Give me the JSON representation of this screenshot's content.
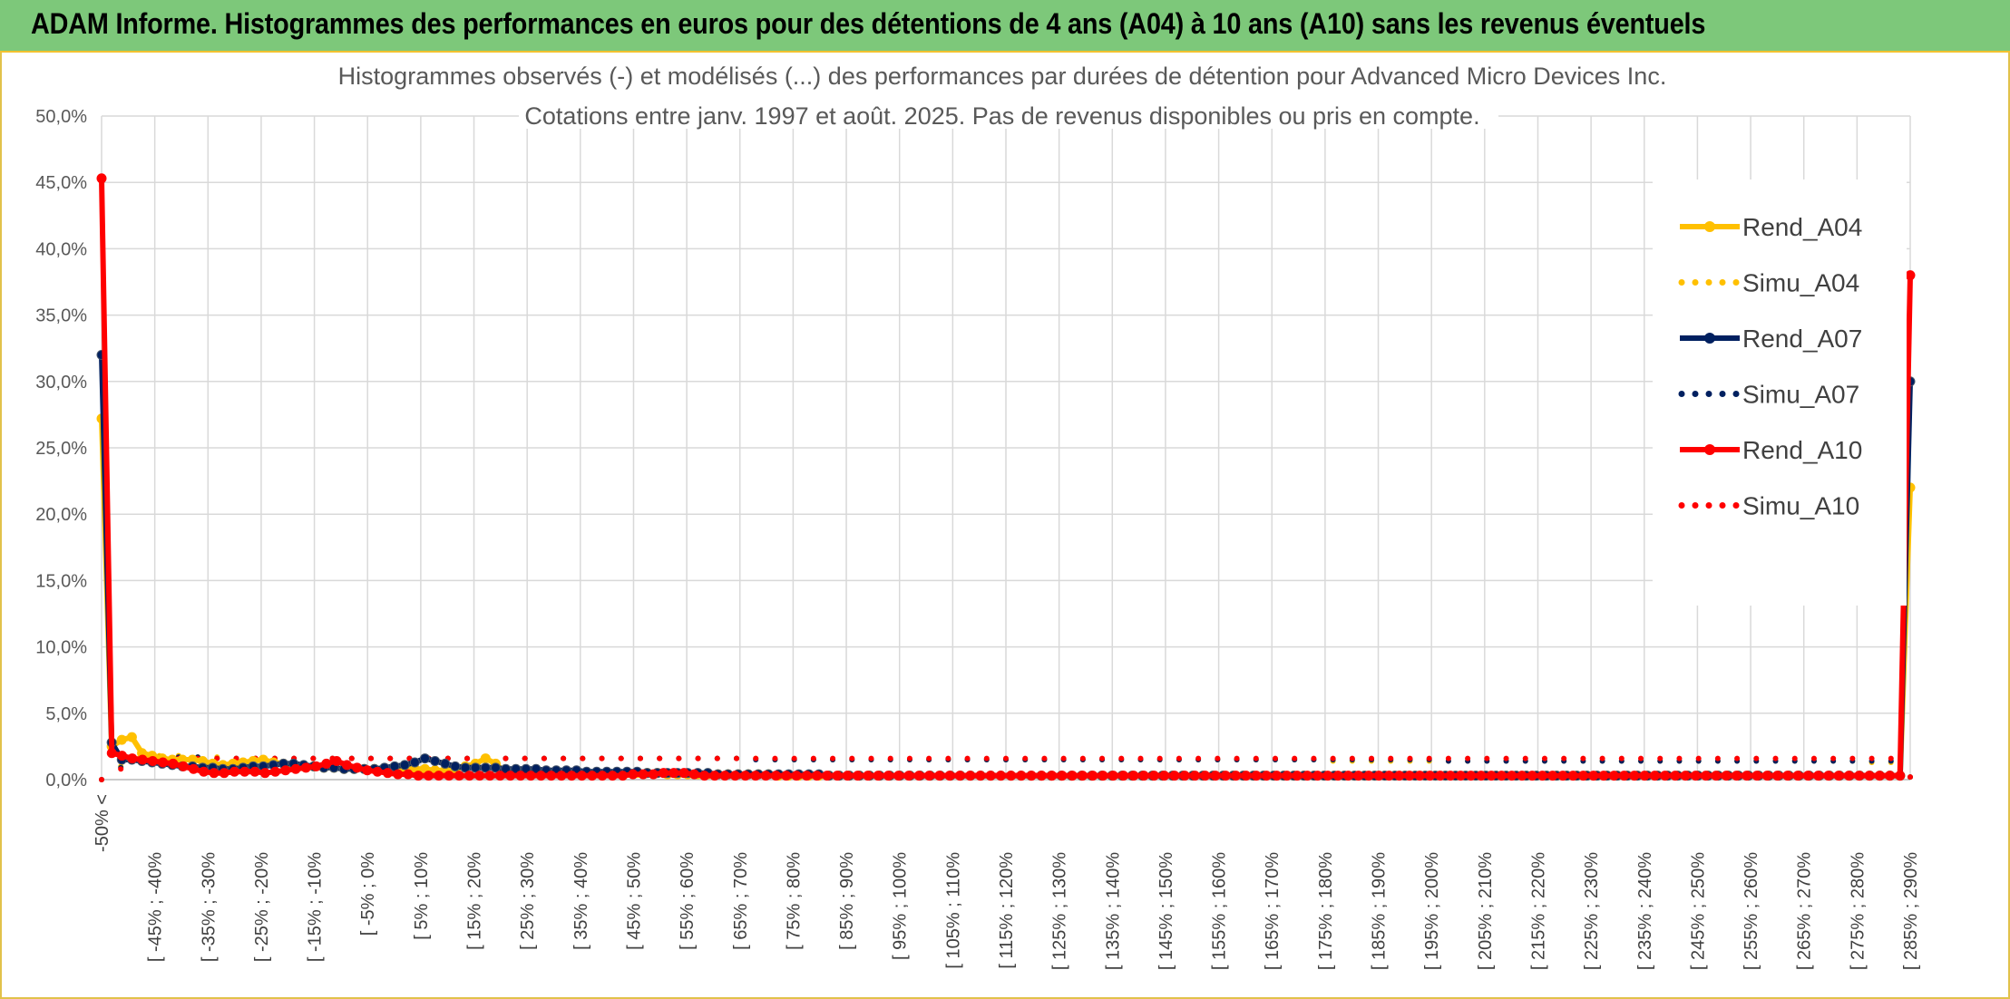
{
  "header": {
    "title": "ADAM Informe. Histogrammes des performances en euros pour des détentions de 4 ans (A04) à 10 ans (A10) sans les revenus éventuels"
  },
  "colors": {
    "a04": "#ffc000",
    "a07": "#002060",
    "a10": "#ff0000",
    "grid": "#d9d9d9",
    "banner": "#7dc87a"
  },
  "chart_data": {
    "type": "line",
    "title": "Histogrammes observés (-) et modélisés (...) des performances par durées de détention pour Advanced Micro Devices Inc.",
    "subtitle": "Cotations entre janv. 1997 et août. 2025. Pas de revenus disponibles ou pris en compte.",
    "ylim": [
      0,
      50
    ],
    "y_ticks": [
      "0,0%",
      "5,0%",
      "10,0%",
      "15,0%",
      "20,0%",
      "25,0%",
      "30,0%",
      "35,0%",
      "40,0%",
      "45,0%",
      "50,0%"
    ],
    "x_tick_labels": [
      "-50% <",
      "[ -45% ; -40%",
      "[ -35% ; -30%",
      "[ -25% ; -20%",
      "[ -15% ; -10%",
      "[ -5% ; 0%",
      "[ 5% ; 10%",
      "[ 15% ; 20%",
      "[ 25% ; 30%",
      "[ 35% ; 40%",
      "[ 45% ; 50%",
      "[ 55% ; 60%",
      "[ 65% ; 70%",
      "[ 75% ; 80%",
      "[ 85% ; 90%",
      "[ 95% ; 100%",
      "[ 105% ; 110%",
      "[ 115% ; 120%",
      "[ 125% ; 130%",
      "[ 135% ; 140%",
      "[ 145% ; 150%",
      "[ 155% ; 160%",
      "[ 165% ; 170%",
      "[ 175% ; 180%",
      "[ 185% ; 190%",
      "[ 195% ; 200%",
      "[ 205% ; 210%",
      "[ 215% ; 220%",
      "[ 225% ; 230%",
      "[ 235% ; 240%",
      "[ 245% ; 250%",
      "[ 255% ; 260%",
      "[ 265% ; 270%",
      "[ 275% ; 280%",
      "[ 285% ; 290%"
    ],
    "legend_position": "right",
    "grid": true,
    "series": [
      {
        "name": "Rend_A04",
        "style": "solid",
        "color": "#ffc000",
        "values": [
          27.2,
          2.5,
          3.0,
          3.2,
          2.0,
          1.8,
          1.6,
          1.5,
          1.5,
          1.5,
          1.4,
          1.2,
          1.1,
          1.2,
          1.3,
          1.4,
          1.5,
          1.3,
          1.2,
          1.1,
          1.0,
          1.0,
          0.9,
          0.9,
          0.8,
          0.8,
          0.8,
          0.8,
          0.7,
          0.8,
          0.8,
          0.8,
          0.8,
          0.7,
          0.7,
          0.8,
          1.0,
          1.2,
          1.6,
          1.2,
          0.5,
          0.5,
          0.5,
          0.5,
          0.5,
          0.5,
          0.5,
          0.5,
          0.5,
          0.5,
          0.5,
          0.5,
          0.5,
          0.5,
          0.5,
          0.5,
          0.4,
          0.4,
          0.4,
          0.4,
          0.4,
          0.4,
          0.4,
          0.4,
          0.4,
          0.4,
          0.4,
          0.3,
          0.3,
          0.3,
          0.3,
          0.3,
          0.3,
          0.3,
          0.3,
          0.3,
          0.3,
          0.3,
          0.3,
          0.3,
          0.3,
          0.3,
          0.3,
          0.3,
          0.3,
          0.3,
          0.3,
          0.3,
          0.3,
          0.3,
          0.3,
          0.3,
          0.3,
          0.3,
          0.3,
          0.3,
          0.3,
          0.3,
          0.3,
          0.3,
          0.3,
          0.3,
          0.3,
          0.3,
          0.3,
          0.3,
          0.3,
          0.3,
          0.3,
          0.3,
          0.3,
          0.3,
          0.3,
          0.3,
          0.3,
          0.3,
          0.3,
          0.3,
          0.3,
          0.3,
          0.3,
          0.3,
          0.3,
          0.3,
          0.3,
          0.3,
          0.3,
          0.3,
          0.3,
          0.3,
          0.3,
          0.3,
          0.3,
          0.3,
          0.3,
          0.3,
          0.3,
          0.3,
          0.3,
          0.3,
          0.3,
          0.3,
          0.3,
          0.3,
          0.3,
          0.3,
          0.3,
          0.3,
          0.3,
          0.3,
          0.3,
          0.3,
          0.3,
          0.3,
          0.3,
          0.3,
          0.3,
          0.3,
          0.3,
          0.3,
          0.3,
          0.3,
          0.3,
          0.3,
          0.3,
          0.3,
          0.3,
          0.3,
          0.3,
          0.3,
          0.3,
          0.3,
          0.3,
          0.3,
          0.3,
          0.3,
          0.3,
          0.3,
          0.3,
          22.0
        ]
      },
      {
        "name": "Simu_A04",
        "style": "dotted",
        "color": "#ffc000",
        "values": [
          0.0,
          1.0,
          1.7,
          1.8,
          1.8,
          1.7,
          1.7,
          1.6,
          1.6,
          1.6,
          1.6,
          1.6,
          1.6,
          1.6,
          1.6,
          1.6,
          1.6,
          1.6,
          1.6,
          1.6,
          1.6,
          1.6,
          1.6,
          1.6,
          1.6,
          1.6,
          1.6,
          1.6,
          1.6,
          1.6,
          1.6,
          1.6,
          1.6,
          1.6,
          1.6,
          1.5,
          1.5,
          1.5,
          1.5,
          1.5,
          1.5,
          1.5,
          1.5,
          1.5,
          1.5,
          1.5,
          1.5,
          1.5,
          1.5,
          1.5,
          1.5,
          1.5,
          1.5,
          1.5,
          1.5,
          1.5,
          1.5,
          1.5,
          1.5,
          1.5,
          1.5,
          1.5,
          1.5,
          1.5,
          1.4,
          1.4,
          1.4,
          1.4,
          1.4,
          1.4,
          1.4,
          1.4,
          1.4,
          1.4,
          1.4,
          1.4,
          1.4,
          1.4,
          1.4,
          1.4,
          1.4,
          1.4,
          1.4,
          1.4,
          1.4,
          1.4,
          1.4,
          1.4,
          1.4,
          1.4,
          1.4,
          1.4,
          1.3,
          1.3,
          0.2
        ]
      },
      {
        "name": "Rend_A07",
        "style": "solid",
        "color": "#002060",
        "values": [
          32.0,
          2.8,
          1.5,
          1.5,
          1.4,
          1.3,
          1.2,
          1.1,
          1.0,
          1.0,
          0.9,
          0.9,
          0.8,
          0.8,
          0.9,
          1.0,
          1.0,
          1.1,
          1.2,
          1.2,
          1.1,
          1.0,
          0.9,
          0.9,
          0.8,
          0.8,
          0.8,
          0.8,
          0.9,
          1.0,
          1.1,
          1.3,
          1.6,
          1.4,
          1.2,
          1.0,
          0.9,
          0.9,
          0.9,
          0.9,
          0.8,
          0.8,
          0.8,
          0.8,
          0.7,
          0.7,
          0.7,
          0.7,
          0.6,
          0.6,
          0.6,
          0.6,
          0.6,
          0.6,
          0.5,
          0.5,
          0.5,
          0.5,
          0.5,
          0.5,
          0.5,
          0.4,
          0.4,
          0.4,
          0.4,
          0.4,
          0.4,
          0.4,
          0.4,
          0.4,
          0.4,
          0.4,
          0.3,
          0.3,
          0.3,
          0.3,
          0.3,
          0.3,
          0.3,
          0.3,
          0.3,
          0.3,
          0.3,
          0.3,
          0.3,
          0.3,
          0.3,
          0.3,
          0.3,
          0.3,
          0.3,
          0.3,
          0.3,
          0.3,
          0.3,
          0.3,
          0.3,
          0.3,
          0.3,
          0.3,
          0.3,
          0.3,
          0.3,
          0.3,
          0.3,
          0.3,
          0.3,
          0.3,
          0.3,
          0.3,
          0.3,
          0.3,
          0.3,
          0.3,
          0.3,
          0.3,
          0.3,
          0.3,
          0.3,
          0.3,
          0.3,
          0.3,
          0.3,
          0.3,
          0.3,
          0.3,
          0.3,
          0.3,
          0.3,
          0.3,
          0.3,
          0.3,
          0.3,
          0.3,
          0.3,
          0.3,
          0.3,
          0.3,
          0.3,
          0.3,
          0.3,
          0.3,
          0.3,
          0.3,
          0.3,
          0.3,
          0.3,
          0.3,
          0.3,
          0.3,
          0.3,
          0.3,
          0.3,
          0.3,
          0.3,
          0.3,
          0.3,
          0.3,
          0.3,
          0.3,
          0.3,
          0.3,
          0.3,
          0.3,
          0.3,
          0.3,
          0.3,
          0.3,
          0.3,
          0.3,
          0.3,
          0.3,
          0.3,
          0.3,
          0.3,
          0.3,
          0.3,
          0.3,
          0.3,
          30.0
        ]
      },
      {
        "name": "Simu_A07",
        "style": "dotted",
        "color": "#002060",
        "values": [
          0.0,
          0.9,
          1.6,
          1.7,
          1.7,
          1.7,
          1.6,
          1.6,
          1.6,
          1.6,
          1.6,
          1.6,
          1.6,
          1.6,
          1.6,
          1.6,
          1.6,
          1.6,
          1.6,
          1.6,
          1.6,
          1.6,
          1.6,
          1.6,
          1.6,
          1.6,
          1.6,
          1.6,
          1.6,
          1.6,
          1.6,
          1.6,
          1.6,
          1.6,
          1.5,
          1.5,
          1.5,
          1.5,
          1.5,
          1.5,
          1.5,
          1.5,
          1.5,
          1.5,
          1.5,
          1.5,
          1.5,
          1.5,
          1.5,
          1.5,
          1.5,
          1.5,
          1.5,
          1.5,
          1.5,
          1.5,
          1.5,
          1.5,
          1.5,
          1.5,
          1.5,
          1.5,
          1.5,
          1.5,
          1.5,
          1.5,
          1.5,
          1.5,
          1.5,
          1.5,
          1.4,
          1.4,
          1.4,
          1.4,
          1.4,
          1.4,
          1.4,
          1.4,
          1.4,
          1.4,
          1.4,
          1.4,
          1.4,
          1.4,
          1.4,
          1.4,
          1.4,
          1.4,
          1.4,
          1.4,
          1.4,
          1.4,
          1.4,
          1.4,
          0.2
        ]
      },
      {
        "name": "Rend_A10",
        "style": "solid",
        "color": "#ff0000",
        "values": [
          45.3,
          2.0,
          1.8,
          1.6,
          1.5,
          1.4,
          1.3,
          1.2,
          1.0,
          0.8,
          0.6,
          0.5,
          0.5,
          0.6,
          0.6,
          0.6,
          0.5,
          0.6,
          0.7,
          0.8,
          0.9,
          1.0,
          1.2,
          1.4,
          1.1,
          0.9,
          0.7,
          0.6,
          0.5,
          0.4,
          0.4,
          0.3,
          0.3,
          0.3,
          0.3,
          0.3,
          0.3,
          0.3,
          0.3,
          0.3,
          0.3,
          0.3,
          0.3,
          0.3,
          0.3,
          0.3,
          0.3,
          0.3,
          0.3,
          0.3,
          0.3,
          0.3,
          0.4,
          0.4,
          0.4,
          0.5,
          0.5,
          0.5,
          0.4,
          0.3,
          0.3,
          0.3,
          0.3,
          0.3,
          0.3,
          0.3,
          0.3,
          0.3,
          0.3,
          0.3,
          0.3,
          0.3,
          0.3,
          0.3,
          0.3,
          0.3,
          0.3,
          0.3,
          0.3,
          0.3,
          0.3,
          0.3,
          0.3,
          0.3,
          0.3,
          0.3,
          0.3,
          0.3,
          0.3,
          0.3,
          0.3,
          0.3,
          0.3,
          0.3,
          0.3,
          0.3,
          0.3,
          0.3,
          0.3,
          0.3,
          0.3,
          0.3,
          0.3,
          0.3,
          0.3,
          0.3,
          0.3,
          0.3,
          0.3,
          0.3,
          0.3,
          0.3,
          0.3,
          0.3,
          0.3,
          0.3,
          0.3,
          0.3,
          0.3,
          0.3,
          0.3,
          0.3,
          0.3,
          0.3,
          0.3,
          0.3,
          0.3,
          0.3,
          0.3,
          0.3,
          0.3,
          0.3,
          0.3,
          0.3,
          0.3,
          0.3,
          0.3,
          0.3,
          0.3,
          0.3,
          0.3,
          0.3,
          0.3,
          0.3,
          0.3,
          0.3,
          0.3,
          0.3,
          0.3,
          0.3,
          0.3,
          0.3,
          0.3,
          0.3,
          0.3,
          0.3,
          0.3,
          0.3,
          0.3,
          0.3,
          0.3,
          0.3,
          0.3,
          0.3,
          0.3,
          0.3,
          0.3,
          0.3,
          0.3,
          0.3,
          0.3,
          0.3,
          0.3,
          0.3,
          0.3,
          0.3,
          0.3,
          38.0
        ]
      },
      {
        "name": "Simu_A10",
        "style": "dotted",
        "color": "#ff0000",
        "values": [
          0.0,
          0.8,
          1.5,
          1.6,
          1.6,
          1.6,
          1.6,
          1.6,
          1.6,
          1.6,
          1.6,
          1.6,
          1.6,
          1.6,
          1.6,
          1.6,
          1.6,
          1.6,
          1.6,
          1.6,
          1.6,
          1.6,
          1.6,
          1.6,
          1.6,
          1.6,
          1.6,
          1.6,
          1.6,
          1.6,
          1.6,
          1.6,
          1.6,
          1.6,
          1.6,
          1.6,
          1.6,
          1.6,
          1.6,
          1.6,
          1.6,
          1.6,
          1.6,
          1.6,
          1.6,
          1.6,
          1.6,
          1.6,
          1.6,
          1.6,
          1.6,
          1.6,
          1.6,
          1.6,
          1.6,
          1.6,
          1.6,
          1.6,
          1.6,
          1.6,
          1.6,
          1.6,
          1.6,
          1.6,
          1.6,
          1.6,
          1.6,
          1.6,
          1.6,
          1.6,
          1.6,
          1.6,
          1.6,
          1.6,
          1.6,
          1.6,
          1.6,
          1.6,
          1.6,
          1.6,
          1.6,
          1.6,
          1.6,
          1.6,
          1.6,
          1.6,
          1.6,
          1.6,
          1.6,
          1.6,
          1.6,
          1.6,
          1.6,
          1.6,
          0.2
        ]
      }
    ]
  }
}
